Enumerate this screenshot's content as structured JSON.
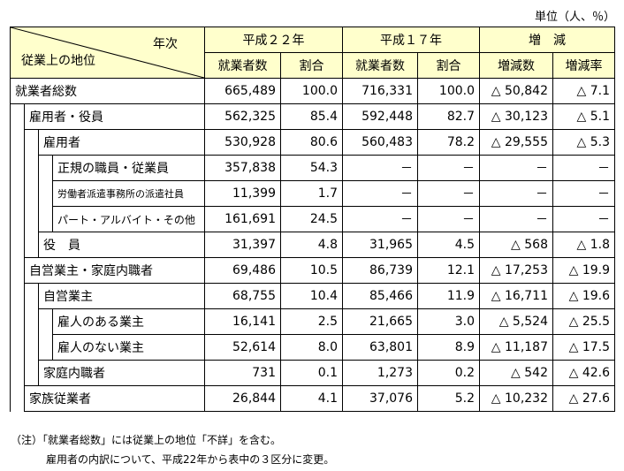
{
  "unit": "単位（人、％）",
  "header": {
    "year_label": "年次",
    "status_label": "従業上の地位",
    "groups": [
      "平成２２年",
      "平成１７年",
      "増　減"
    ],
    "subs": [
      "就業者数",
      "割合",
      "就業者数",
      "割合",
      "増減数",
      "増減率"
    ]
  },
  "rows": [
    {
      "label": "就業者総数",
      "v": [
        "665,489",
        "100.0",
        "716,331",
        "100.0",
        "△ 50,842",
        "△ 7.1"
      ]
    },
    {
      "label": "雇用者・役員",
      "v": [
        "562,325",
        "85.4",
        "592,448",
        "82.7",
        "△ 30,123",
        "△ 5.1"
      ]
    },
    {
      "label": "雇用者",
      "v": [
        "530,928",
        "80.6",
        "560,483",
        "78.2",
        "△ 29,555",
        "△ 5.3"
      ]
    },
    {
      "label": "正規の職員・従業員",
      "v": [
        "357,838",
        "54.3",
        "－",
        "－",
        "－",
        "－"
      ]
    },
    {
      "label": "労働者派遣事務所の派遣社員",
      "v": [
        "11,399",
        "1.7",
        "－",
        "－",
        "－",
        "－"
      ]
    },
    {
      "label": "パート・アルバイト・その他",
      "v": [
        "161,691",
        "24.5",
        "－",
        "－",
        "－",
        "－"
      ]
    },
    {
      "label": "役　員",
      "v": [
        "31,397",
        "4.8",
        "31,965",
        "4.5",
        "△ 568",
        "△ 1.8"
      ]
    },
    {
      "label": "自営業主・家庭内職者",
      "v": [
        "69,486",
        "10.5",
        "86,739",
        "12.1",
        "△ 17,253",
        "△ 19.9"
      ]
    },
    {
      "label": "自営業主",
      "v": [
        "68,755",
        "10.4",
        "85,466",
        "11.9",
        "△ 16,711",
        "△ 19.6"
      ]
    },
    {
      "label": "雇人のある業主",
      "v": [
        "16,141",
        "2.5",
        "21,665",
        "3.0",
        "△ 5,524",
        "△ 25.5"
      ]
    },
    {
      "label": "雇人のない業主",
      "v": [
        "52,614",
        "8.0",
        "63,801",
        "8.9",
        "△ 11,187",
        "△ 17.5"
      ]
    },
    {
      "label": "家庭内職者",
      "v": [
        "731",
        "0.1",
        "1,273",
        "0.2",
        "△ 542",
        "△ 42.6"
      ]
    },
    {
      "label": "家族従業者",
      "v": [
        "26,844",
        "4.1",
        "37,076",
        "5.2",
        "△ 10,232",
        "△ 27.6"
      ]
    }
  ],
  "notes": [
    "（注）「就業者総数」には従業上の地位「不詳」を含む。",
    "雇用者の内訳について、平成22年から表中の３区分に変更。"
  ]
}
